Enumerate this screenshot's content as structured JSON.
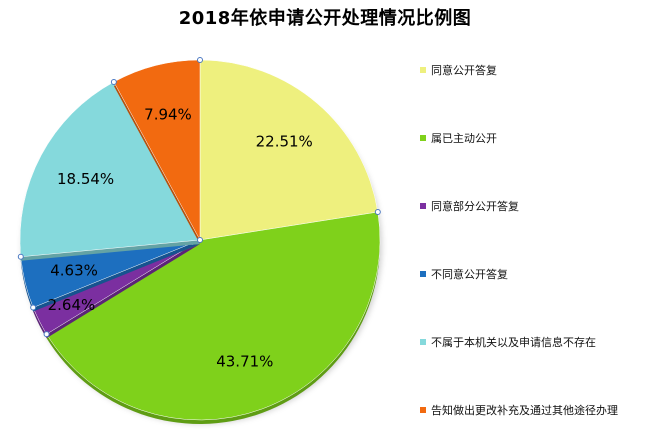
{
  "chart_data": {
    "type": "pie",
    "title": "2018年依申请公开处理情况比例图",
    "slices": [
      {
        "label": "同意公开答复",
        "value": 22.51,
        "display": "22.51%",
        "color": "#eef07e"
      },
      {
        "label": "属已主动公开",
        "value": 43.71,
        "display": "43.71%",
        "color": "#7fd11b"
      },
      {
        "label": "同意部分公开答复",
        "value": 2.64,
        "display": "2.64%",
        "color": "#7b2fa0"
      },
      {
        "label": "不同意公开答复",
        "value": 4.63,
        "display": "4.63%",
        "color": "#1d6fbf"
      },
      {
        "label": "不属于本机关以及申请信息不存在",
        "value": 18.54,
        "display": "18.54%",
        "color": "#85d9dc"
      },
      {
        "label": "告知做出更改补充及通过其他途径办理",
        "value": 7.94,
        "display": "7.94%",
        "color": "#f26a10"
      }
    ],
    "legend_position": "right"
  }
}
